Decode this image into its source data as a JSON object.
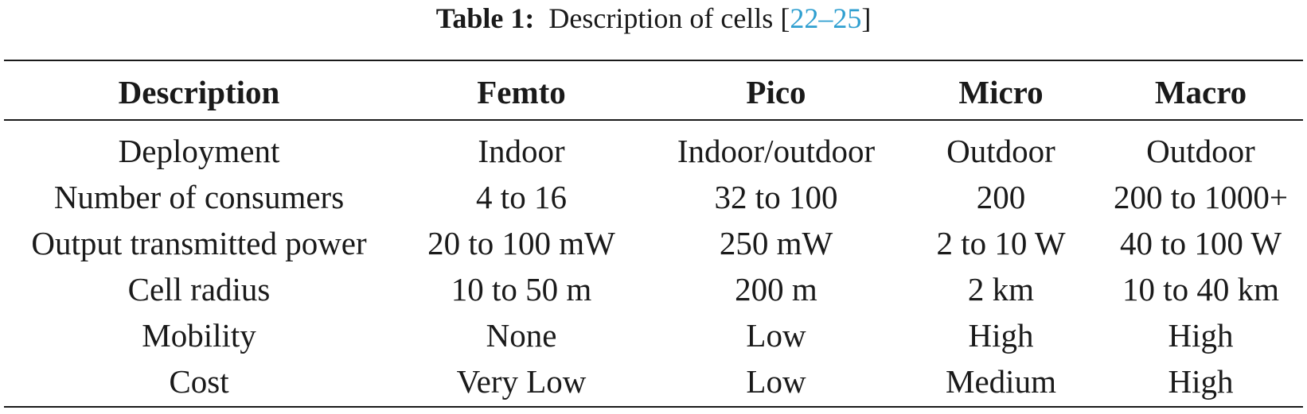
{
  "caption": {
    "label": "Table 1:",
    "text": "Description of cells",
    "ref_open": "[",
    "ref_start": "22",
    "ref_dash": "–",
    "ref_end": "25",
    "ref_close": "]",
    "ref_color": "#2f9fd0"
  },
  "table": {
    "headers": [
      "Description",
      "Femto",
      "Pico",
      "Micro",
      "Macro"
    ],
    "rows": [
      [
        "Deployment",
        "Indoor",
        "Indoor/outdoor",
        "Outdoor",
        "Outdoor"
      ],
      [
        "Number of consumers",
        "4 to 16",
        "32 to 100",
        "200",
        "200 to 1000+"
      ],
      [
        "Output transmitted power",
        "20 to 100 mW",
        "250 mW",
        "2 to 10 W",
        "40 to 100 W"
      ],
      [
        "Cell radius",
        "10 to 50 m",
        "200 m",
        "2 km",
        "10 to 40 km"
      ],
      [
        "Mobility",
        "None",
        "Low",
        "High",
        "High"
      ],
      [
        "Cost",
        "Very Low",
        "Low",
        "Medium",
        "High"
      ]
    ]
  }
}
